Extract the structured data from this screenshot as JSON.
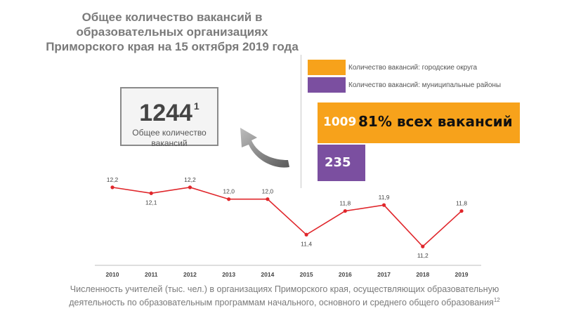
{
  "header": {
    "title": "Общее количество вакансий в образовательных организациях Приморского края на 15 октября 2019 года"
  },
  "total": {
    "value": "1244",
    "footnote": "1",
    "label": "Общее количество вакансий"
  },
  "vacancies": {
    "legend": [
      {
        "label": "Количество вакансий: городские округа",
        "color": "#f7a21b"
      },
      {
        "label": "Количество вакансий: муниципальные районы",
        "color": "#7b4fa0"
      }
    ],
    "urban_value": "1009",
    "urban_share": "81% всех вакансий",
    "rural_value": "235"
  },
  "chart_data": {
    "type": "line",
    "x": [
      2010,
      2011,
      2012,
      2013,
      2014,
      2015,
      2016,
      2017,
      2018,
      2019
    ],
    "series": [
      {
        "values": [
          12.2,
          12.1,
          12.2,
          12.0,
          12.0,
          11.4,
          11.8,
          11.9,
          11.2,
          11.8
        ],
        "labels": [
          "12,2",
          "12,1",
          "12,2",
          "12,0",
          "12,0",
          "11,4",
          "11,8",
          "11,9",
          "11,2",
          "11,8"
        ],
        "color": "#e0262b"
      }
    ],
    "ylim": [
      11.0,
      12.4
    ],
    "grid": false
  },
  "caption": {
    "text": "Численность учителей (тыс. чел.) в организациях Приморского края, осуществляющих образовательную деятельность по образовательным программам начального, основного и среднего общего образования",
    "footnote": "12"
  }
}
